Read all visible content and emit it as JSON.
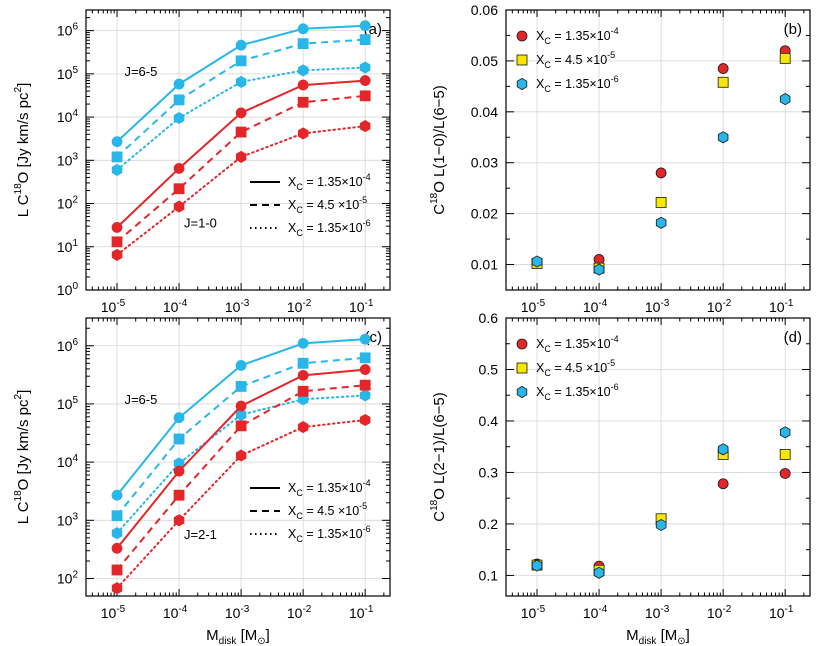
{
  "colors": {
    "cyan": "#29B6E8",
    "red": "#E32629",
    "yellow": "#F7E600",
    "grid": "#d6d6d6"
  },
  "chart_data": [
    {
      "id": "a",
      "type": "line",
      "label": "(a)",
      "scale": "log",
      "ylabel": "L C18O [Jy km/s pc2]",
      "ylabel_parts": [
        "L C",
        "18",
        "O [Jy km/s pc",
        "2",
        "]"
      ],
      "xlabel": "",
      "xlabel_parts": [],
      "ylim": [
        1,
        3000000
      ],
      "x_exp": [
        -5,
        -4,
        -3,
        -2,
        -1
      ],
      "x_ticks": [
        {
          "b": "10",
          "e": "-5"
        },
        {
          "b": "10",
          "e": "-4"
        },
        {
          "b": "10",
          "e": "-3"
        },
        {
          "b": "10",
          "e": "-2"
        },
        {
          "b": "10",
          "e": "-1"
        }
      ],
      "y_ticks": [
        {
          "v": 1,
          "b": "10",
          "e": "0"
        },
        {
          "v": 10,
          "b": "10",
          "e": "1"
        },
        {
          "v": 100,
          "b": "10",
          "e": "2"
        },
        {
          "v": 1000,
          "b": "10",
          "e": "3"
        },
        {
          "v": 10000,
          "b": "10",
          "e": "4"
        },
        {
          "v": 100000,
          "b": "10",
          "e": "5"
        },
        {
          "v": 1000000,
          "b": "10",
          "e": "6"
        }
      ],
      "annotations": [
        {
          "text": "J=6-5",
          "color": "cyan",
          "xe": -4.88,
          "y": 90000
        },
        {
          "text": "J=1-0",
          "color": "red",
          "xe": -3.92,
          "y": 28
        }
      ],
      "legend": {
        "kind": "lines",
        "position": "lower-right",
        "items": [
          {
            "dash": "solid",
            "parts": [
              "X",
              "C",
              " = 1.35×10",
              "-4"
            ]
          },
          {
            "dash": "dashed",
            "parts": [
              "X",
              "C",
              " = 4.5 ×10",
              "-5"
            ]
          },
          {
            "dash": "dotted",
            "parts": [
              "X",
              "C",
              " = 1.35×10",
              "-6"
            ]
          }
        ]
      },
      "series": [
        {
          "name": "J=6-5 X_C=1.35e-4",
          "color": "cyan",
          "dash": "solid",
          "marker": "circle",
          "values": [
            2700,
            58000,
            460000,
            1100000,
            1300000
          ]
        },
        {
          "name": "J=6-5 X_C=4.5e-5",
          "color": "cyan",
          "dash": "dashed",
          "marker": "square",
          "values": [
            1200,
            25000,
            200000,
            500000,
            620000
          ]
        },
        {
          "name": "J=6-5 X_C=1.35e-6",
          "color": "cyan",
          "dash": "dotted",
          "marker": "hexagon",
          "values": [
            600,
            9500,
            65000,
            120000,
            140000
          ]
        },
        {
          "name": "J=1-0 X_C=1.35e-4",
          "color": "red",
          "dash": "solid",
          "marker": "circle",
          "values": [
            28,
            650,
            12500,
            55000,
            70000
          ]
        },
        {
          "name": "J=1-0 X_C=4.5e-5",
          "color": "red",
          "dash": "dashed",
          "marker": "square",
          "values": [
            13,
            220,
            4500,
            22000,
            31000
          ]
        },
        {
          "name": "J=1-0 X_C=1.35e-6",
          "color": "red",
          "dash": "dotted",
          "marker": "hexagon",
          "values": [
            6.5,
            85,
            1200,
            4200,
            6200
          ]
        }
      ]
    },
    {
      "id": "b",
      "type": "scatter",
      "label": "(b)",
      "scale": "linear",
      "ylabel": "C18O L(1-0)/L(6-5)",
      "ylabel_parts": [
        "C",
        "18",
        "O L(1−0)/L(6−5)",
        "",
        ""
      ],
      "xlabel": "",
      "xlabel_parts": [],
      "ylim": [
        0.005,
        0.06
      ],
      "x_exp": [
        -5,
        -4,
        -3,
        -2,
        -1
      ],
      "x_ticks": [
        {
          "b": "10",
          "e": "-5"
        },
        {
          "b": "10",
          "e": "-4"
        },
        {
          "b": "10",
          "e": "-3"
        },
        {
          "b": "10",
          "e": "-2"
        },
        {
          "b": "10",
          "e": "-1"
        }
      ],
      "y_ticks": [
        {
          "v": 0.01,
          "t": "0.01"
        },
        {
          "v": 0.02,
          "t": "0.02"
        },
        {
          "v": 0.03,
          "t": "0.03"
        },
        {
          "v": 0.04,
          "t": "0.04"
        },
        {
          "v": 0.05,
          "t": "0.05"
        },
        {
          "v": 0.06,
          "t": "0.06"
        }
      ],
      "annotations": [],
      "legend": {
        "kind": "markers",
        "position": "top-left",
        "items": [
          {
            "marker": "circle",
            "color": "red",
            "parts": [
              "X",
              "C",
              " = 1.35×10",
              "-4"
            ]
          },
          {
            "marker": "square",
            "color": "yellow",
            "parts": [
              "X",
              "C",
              " = 4.5 ×10",
              "-5"
            ]
          },
          {
            "marker": "hexagon",
            "color": "cyan",
            "parts": [
              "X",
              "C",
              " = 1.35×10",
              "-6"
            ]
          }
        ]
      },
      "series": [
        {
          "name": "X_C=1.35e-4",
          "color": "red",
          "marker": "circle",
          "values": [
            0.0105,
            0.011,
            0.028,
            0.0485,
            0.052
          ]
        },
        {
          "name": "X_C=4.5e-5",
          "color": "yellow",
          "marker": "square",
          "values": [
            0.0102,
            0.0093,
            0.0222,
            0.0458,
            0.0505
          ]
        },
        {
          "name": "X_C=1.35e-6",
          "color": "cyan",
          "marker": "hexagon",
          "values": [
            0.0106,
            0.009,
            0.0182,
            0.035,
            0.0425
          ]
        }
      ]
    },
    {
      "id": "c",
      "type": "line",
      "label": "(c)",
      "scale": "log",
      "ylabel": "L C18O [Jy km/s pc2]",
      "ylabel_parts": [
        "L C",
        "18",
        "O [Jy km/s pc",
        "2",
        "]"
      ],
      "xlabel": "Mdisk [M⊙]",
      "xlabel_parts": [
        "M",
        "disk",
        " [M",
        "⊙",
        "]"
      ],
      "ylim": [
        50,
        3000000
      ],
      "x_exp": [
        -5,
        -4,
        -3,
        -2,
        -1
      ],
      "x_ticks": [
        {
          "b": "10",
          "e": "-5"
        },
        {
          "b": "10",
          "e": "-4"
        },
        {
          "b": "10",
          "e": "-3"
        },
        {
          "b": "10",
          "e": "-2"
        },
        {
          "b": "10",
          "e": "-1"
        }
      ],
      "y_ticks": [
        {
          "v": 100,
          "b": "10",
          "e": "2"
        },
        {
          "v": 1000,
          "b": "10",
          "e": "3"
        },
        {
          "v": 10000,
          "b": "10",
          "e": "4"
        },
        {
          "v": 100000,
          "b": "10",
          "e": "5"
        },
        {
          "v": 1000000,
          "b": "10",
          "e": "6"
        }
      ],
      "annotations": [
        {
          "text": "J=6-5",
          "color": "cyan",
          "xe": -4.88,
          "y": 100000
        },
        {
          "text": "J=2-1",
          "color": "red",
          "xe": -3.92,
          "y": 480
        }
      ],
      "legend": {
        "kind": "lines",
        "position": "lower-right",
        "items": [
          {
            "dash": "solid",
            "parts": [
              "X",
              "C",
              " = 1.35×10",
              "-4"
            ]
          },
          {
            "dash": "dashed",
            "parts": [
              "X",
              "C",
              " = 4.5 ×10",
              "-5"
            ]
          },
          {
            "dash": "dotted",
            "parts": [
              "X",
              "C",
              " = 1.35×10",
              "-6"
            ]
          }
        ]
      },
      "series": [
        {
          "name": "J=6-5 X_C=1.35e-4",
          "color": "cyan",
          "dash": "solid",
          "marker": "circle",
          "values": [
            2700,
            58000,
            460000,
            1100000,
            1300000
          ]
        },
        {
          "name": "J=6-5 X_C=4.5e-5",
          "color": "cyan",
          "dash": "dashed",
          "marker": "square",
          "values": [
            1200,
            25000,
            200000,
            500000,
            620000
          ]
        },
        {
          "name": "J=6-5 X_C=1.35e-6",
          "color": "cyan",
          "dash": "dotted",
          "marker": "hexagon",
          "values": [
            600,
            9500,
            65000,
            120000,
            140000
          ]
        },
        {
          "name": "J=2-1 X_C=1.35e-4",
          "color": "red",
          "dash": "solid",
          "marker": "circle",
          "values": [
            330,
            7000,
            92000,
            310000,
            390000
          ]
        },
        {
          "name": "J=2-1 X_C=4.5e-5",
          "color": "red",
          "dash": "dashed",
          "marker": "square",
          "values": [
            140,
            2700,
            42000,
            165000,
            210000
          ]
        },
        {
          "name": "J=2-1 X_C=1.35e-6",
          "color": "red",
          "dash": "dotted",
          "marker": "hexagon",
          "values": [
            68,
            1000,
            13000,
            40000,
            53000
          ]
        }
      ]
    },
    {
      "id": "d",
      "type": "scatter",
      "label": "(d)",
      "scale": "linear",
      "ylabel": "C18O L(2-1)/L(6-5)",
      "ylabel_parts": [
        "C",
        "18",
        "O L(2−1)/L(6−5)",
        "",
        ""
      ],
      "xlabel": "Mdisk [M⊙]",
      "xlabel_parts": [
        "M",
        "disk",
        " [M",
        "⊙",
        "]"
      ],
      "ylim": [
        0.06,
        0.6
      ],
      "x_exp": [
        -5,
        -4,
        -3,
        -2,
        -1
      ],
      "x_ticks": [
        {
          "b": "10",
          "e": "-5"
        },
        {
          "b": "10",
          "e": "-4"
        },
        {
          "b": "10",
          "e": "-3"
        },
        {
          "b": "10",
          "e": "-2"
        },
        {
          "b": "10",
          "e": "-1"
        }
      ],
      "y_ticks": [
        {
          "v": 0.1,
          "t": "0.1"
        },
        {
          "v": 0.2,
          "t": "0.2"
        },
        {
          "v": 0.3,
          "t": "0.3"
        },
        {
          "v": 0.4,
          "t": "0.4"
        },
        {
          "v": 0.5,
          "t": "0.5"
        },
        {
          "v": 0.6,
          "t": "0.6"
        }
      ],
      "annotations": [],
      "legend": {
        "kind": "markers",
        "position": "top-left",
        "items": [
          {
            "marker": "circle",
            "color": "red",
            "parts": [
              "X",
              "C",
              " = 1.35×10",
              "-4"
            ]
          },
          {
            "marker": "square",
            "color": "yellow",
            "parts": [
              "X",
              "C",
              " = 4.5 ×10",
              "-5"
            ]
          },
          {
            "marker": "hexagon",
            "color": "cyan",
            "parts": [
              "X",
              "C",
              " = 1.35×10",
              "-6"
            ]
          }
        ]
      },
      "series": [
        {
          "name": "X_C=1.35e-4",
          "color": "red",
          "marker": "circle",
          "values": [
            0.122,
            0.118,
            0.2,
            0.278,
            0.298
          ]
        },
        {
          "name": "X_C=4.5e-5",
          "color": "yellow",
          "marker": "square",
          "values": [
            0.12,
            0.11,
            0.21,
            0.335,
            0.335
          ]
        },
        {
          "name": "X_C=1.35e-6",
          "color": "cyan",
          "marker": "hexagon",
          "values": [
            0.119,
            0.105,
            0.198,
            0.345,
            0.378
          ]
        }
      ]
    }
  ]
}
